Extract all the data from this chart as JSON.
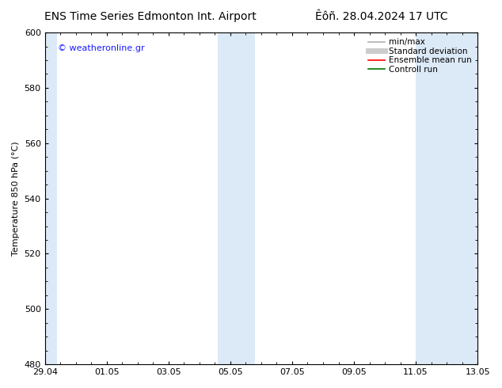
{
  "title_left": "ENS Time Series Edmonton Int. Airport",
  "title_right": "Êôñ. 28.04.2024 17 UTC",
  "ylabel": "Temperature 850 hPa (°C)",
  "ylim": [
    480,
    600
  ],
  "yticks": [
    480,
    500,
    520,
    540,
    560,
    580,
    600
  ],
  "xtick_labels": [
    "29.04",
    "01.05",
    "03.05",
    "05.05",
    "07.05",
    "09.05",
    "11.05",
    "13.05"
  ],
  "xtick_positions": [
    0,
    2,
    4,
    6,
    8,
    10,
    12,
    14
  ],
  "xlim": [
    0,
    14
  ],
  "background_color": "#ffffff",
  "shaded_bands": [
    {
      "x_start": 0.0,
      "x_end": 0.4,
      "color": "#dce9f7"
    },
    {
      "x_start": 5.6,
      "x_end": 6.8,
      "color": "#dce9f7"
    },
    {
      "x_start": 12.0,
      "x_end": 14.0,
      "color": "#dce9f7"
    }
  ],
  "legend_entries": [
    {
      "label": "min/max",
      "color": "#b0b0b0",
      "lw": 1.2
    },
    {
      "label": "Standard deviation",
      "color": "#cccccc",
      "lw": 5.0
    },
    {
      "label": "Ensemble mean run",
      "color": "#ff0000",
      "lw": 1.2
    },
    {
      "label": "Controll run",
      "color": "#007700",
      "lw": 1.2
    }
  ],
  "watermark_text": "© weatheronline.gr",
  "watermark_color": "#1a1aff",
  "title_fontsize": 10,
  "label_fontsize": 8,
  "tick_fontsize": 8,
  "legend_fontsize": 7.5,
  "watermark_fontsize": 8
}
